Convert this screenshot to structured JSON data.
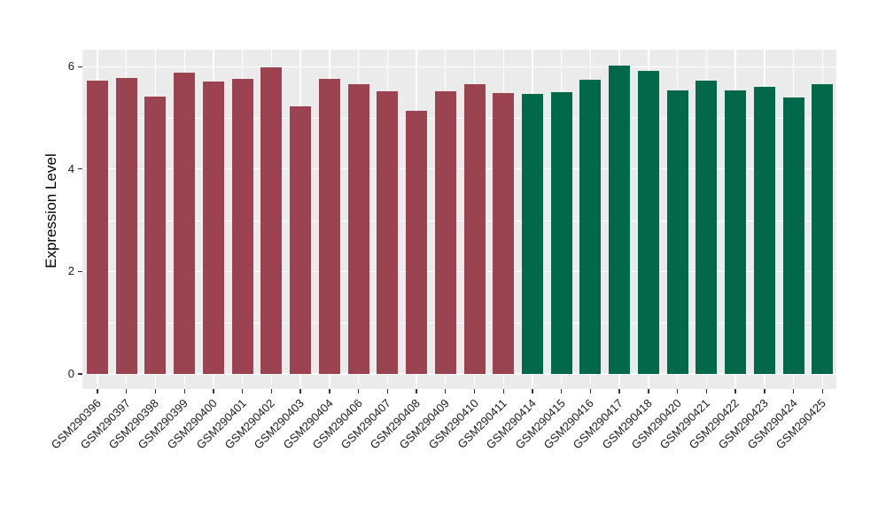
{
  "figure": {
    "background": "#FFFFFF",
    "panel_background": "#EBEBEB",
    "grid_color": "#FFFFFF",
    "axis_tick_color": "#333333",
    "axis_text_color": "#1A1A1A"
  },
  "chart_data": {
    "type": "bar",
    "title": "",
    "xlabel": "",
    "ylabel": "Expression Level",
    "ylim": [
      0,
      6.32
    ],
    "yticks": [
      0,
      2,
      4,
      6
    ],
    "yticks_minor": [
      1,
      3,
      5
    ],
    "grid": true,
    "legend": "none",
    "x_tick_rotation_deg": 45,
    "group_colors": {
      "left_group": "#9C4351",
      "right_group": "#016849"
    },
    "categories": [
      "GSM290396",
      "GSM290397",
      "GSM290398",
      "GSM290399",
      "GSM290400",
      "GSM290401",
      "GSM290402",
      "GSM290403",
      "GSM290404",
      "GSM290406",
      "GSM290407",
      "GSM290408",
      "GSM290409",
      "GSM290410",
      "GSM290411",
      "GSM290414",
      "GSM290415",
      "GSM290416",
      "GSM290417",
      "GSM290418",
      "GSM290420",
      "GSM290421",
      "GSM290422",
      "GSM290423",
      "GSM290424",
      "GSM290425"
    ],
    "values": [
      5.73,
      5.77,
      5.42,
      5.88,
      5.71,
      5.76,
      5.99,
      5.22,
      5.76,
      5.66,
      5.52,
      5.14,
      5.52,
      5.66,
      5.49,
      5.47,
      5.51,
      5.74,
      6.02,
      5.92,
      5.54,
      5.73,
      5.54,
      5.61,
      5.4,
      5.66
    ],
    "bar_colors": [
      "#9C4351",
      "#9C4351",
      "#9C4351",
      "#9C4351",
      "#9C4351",
      "#9C4351",
      "#9C4351",
      "#9C4351",
      "#9C4351",
      "#9C4351",
      "#9C4351",
      "#9C4351",
      "#9C4351",
      "#9C4351",
      "#9C4351",
      "#016849",
      "#016849",
      "#016849",
      "#016849",
      "#016849",
      "#016849",
      "#016849",
      "#016849",
      "#016849",
      "#016849",
      "#016849"
    ]
  }
}
